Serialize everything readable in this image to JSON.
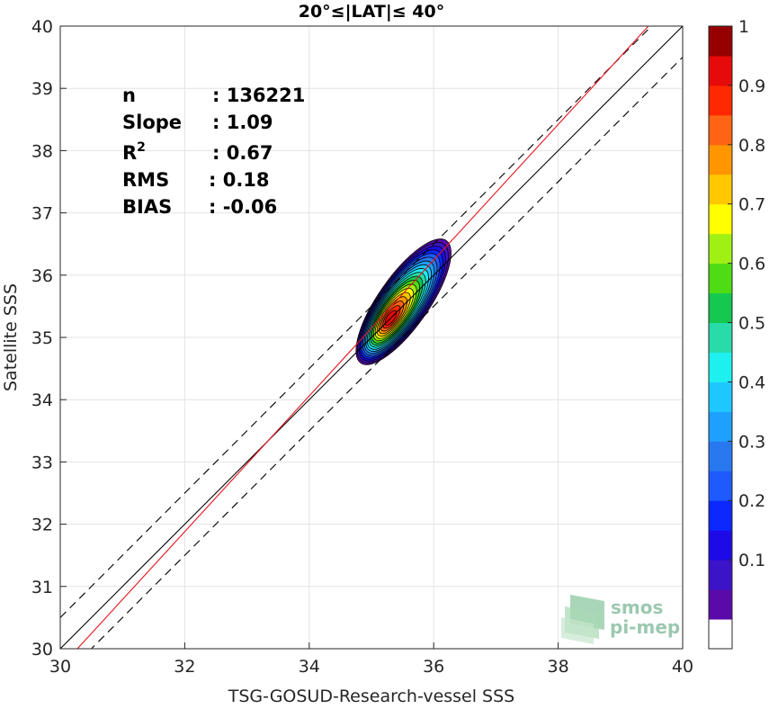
{
  "chart_data": {
    "type": "contour",
    "title": "20°≤|LAT|≤ 40°",
    "xlabel": "TSG-GOSUD-Research-vessel SSS",
    "ylabel": "Satellite SSS",
    "xlim": [
      30,
      40
    ],
    "ylim": [
      30,
      40
    ],
    "xticks": [
      "30",
      "32",
      "34",
      "36",
      "38",
      "40"
    ],
    "yticks": [
      "30",
      "31",
      "32",
      "33",
      "34",
      "35",
      "36",
      "37",
      "38",
      "39",
      "40"
    ],
    "grid": true,
    "stats": [
      {
        "label": "n",
        "value": ": 136221"
      },
      {
        "label": "Slope",
        "value": ": 1.09"
      },
      {
        "label": "R2",
        "value": ": 0.67"
      },
      {
        "label": "RMS",
        "value": ": 0.18"
      },
      {
        "label": "BIAS",
        "value": ": -0.06"
      }
    ],
    "lines": {
      "identity": {
        "slope": 1,
        "intercept": 0,
        "color": "#000000"
      },
      "identity_plus": {
        "slope": 1,
        "intercept": 0.5,
        "color": "#000000",
        "dashed": true
      },
      "identity_minus": {
        "slope": 1,
        "intercept": -0.5,
        "color": "#000000",
        "dashed": true
      },
      "regression": {
        "slope": 1.09,
        "intercept": -3.0,
        "color": "#e8141e"
      }
    },
    "density_center": {
      "x": 35.3,
      "y": 35.3
    },
    "colorbar": {
      "ticks": [
        "0.1",
        "0.2",
        "0.3",
        "0.4",
        "0.5",
        "0.6",
        "0.7",
        "0.8",
        "0.9",
        "1"
      ],
      "levels": [
        0.05,
        0.1,
        0.15,
        0.2,
        0.25,
        0.3,
        0.35,
        0.4,
        0.45,
        0.5,
        0.55,
        0.6,
        0.65,
        0.7,
        0.75,
        0.8,
        0.85,
        0.9,
        0.95,
        1.0
      ],
      "colors": [
        "#ffffff",
        "#5a0aa8",
        "#3c14c8",
        "#1e0ae6",
        "#0a28ff",
        "#1e5aff",
        "#2878f0",
        "#1ea0ff",
        "#1ec8ff",
        "#1ef0f0",
        "#28dcaa",
        "#14c850",
        "#50dc14",
        "#a0f014",
        "#ffff00",
        "#ffc800",
        "#ff9600",
        "#ff6414",
        "#ff2800",
        "#e60a0a",
        "#960000"
      ]
    },
    "logo": {
      "line1": "smos",
      "line2": "pi-mep"
    }
  }
}
